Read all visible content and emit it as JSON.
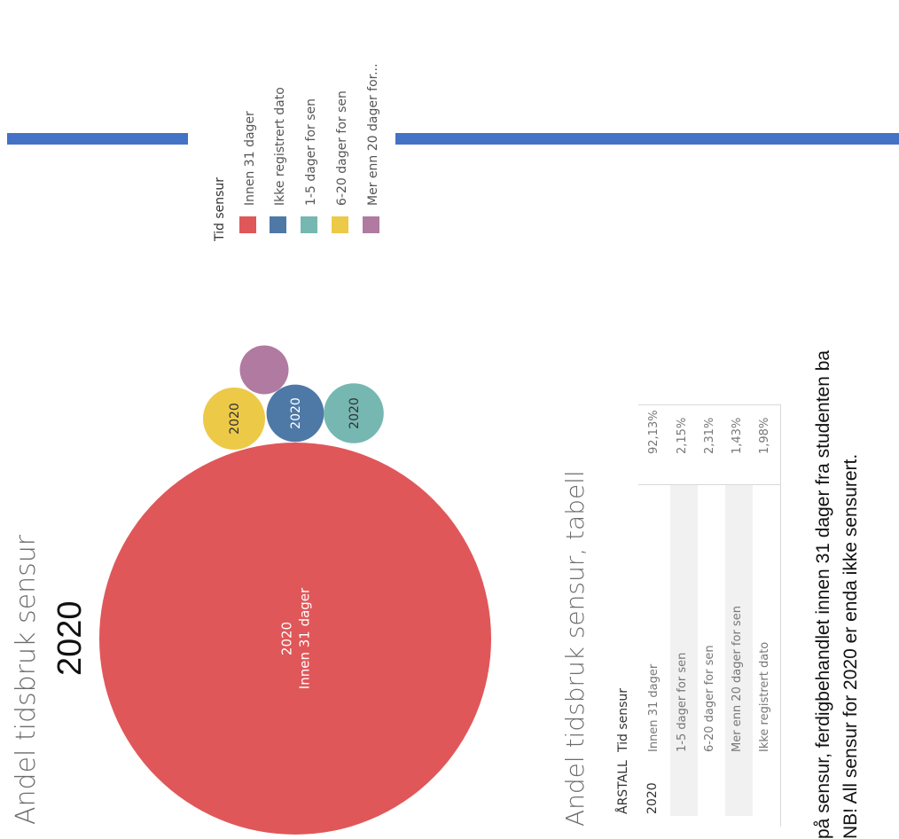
{
  "chart_data": {
    "type": "bubble",
    "title": "Andel tidsbruk sensur",
    "subtitle": "2020",
    "legend": {
      "title": "Tid sensur",
      "placement": "top",
      "entries": [
        {
          "label": "Innen 31 dager",
          "color": "#e05759"
        },
        {
          "label": "Ikke registrert dato",
          "color": "#4e79a7"
        },
        {
          "label": "1-5 dager for sen",
          "color": "#76b7b2"
        },
        {
          "label": "6-20 dager for sen",
          "color": "#edc948"
        },
        {
          "label": "Mer enn 20 dager for...",
          "color": "#b07aa1"
        }
      ]
    },
    "series": [
      {
        "name": "Innen 31 dager",
        "year": "2020",
        "value": 92.13,
        "color": "#e05759",
        "label_year": "2020",
        "label_name": "Innen 31 dager"
      },
      {
        "name": "Ikke registrert dato",
        "year": "2020",
        "value": 1.98,
        "color": "#4e79a7",
        "label_year": "2020",
        "label_name": ""
      },
      {
        "name": "1-5 dager for sen",
        "year": "2020",
        "value": 2.15,
        "color": "#76b7b2",
        "label_year": "2020",
        "label_name": ""
      },
      {
        "name": "6-20 dager for sen",
        "year": "2020",
        "value": 2.31,
        "color": "#edc948",
        "label_year": "2020",
        "label_name": ""
      },
      {
        "name": "Mer enn 20 dager for sen",
        "year": "2020",
        "value": 1.43,
        "color": "#b07aa1",
        "label_year": "",
        "label_name": ""
      }
    ]
  },
  "table": {
    "title": "Andel tidsbruk sensur, tabell",
    "headers": {
      "year": "ÅRSTALL",
      "category": "Tid sensur"
    },
    "year": "2020",
    "rows": [
      {
        "category": "Innen 31 dager",
        "value": "92,13%"
      },
      {
        "category": "1-5 dager for sen",
        "value": "2,15%"
      },
      {
        "category": "6-20 dager for sen",
        "value": "2,31%"
      },
      {
        "category": "Mer enn 20 dager for sen",
        "value": "1,43%"
      },
      {
        "category": "Ikke registrert dato",
        "value": "1,98%"
      }
    ]
  },
  "notes": {
    "line1": "på sensur, ferdigbehandlet innen 31 dager fra studenten ba",
    "line2": "NB! All sensur for 2020 er enda ikke sensurert."
  },
  "colors": {
    "accent_bar": "#4472c4"
  }
}
